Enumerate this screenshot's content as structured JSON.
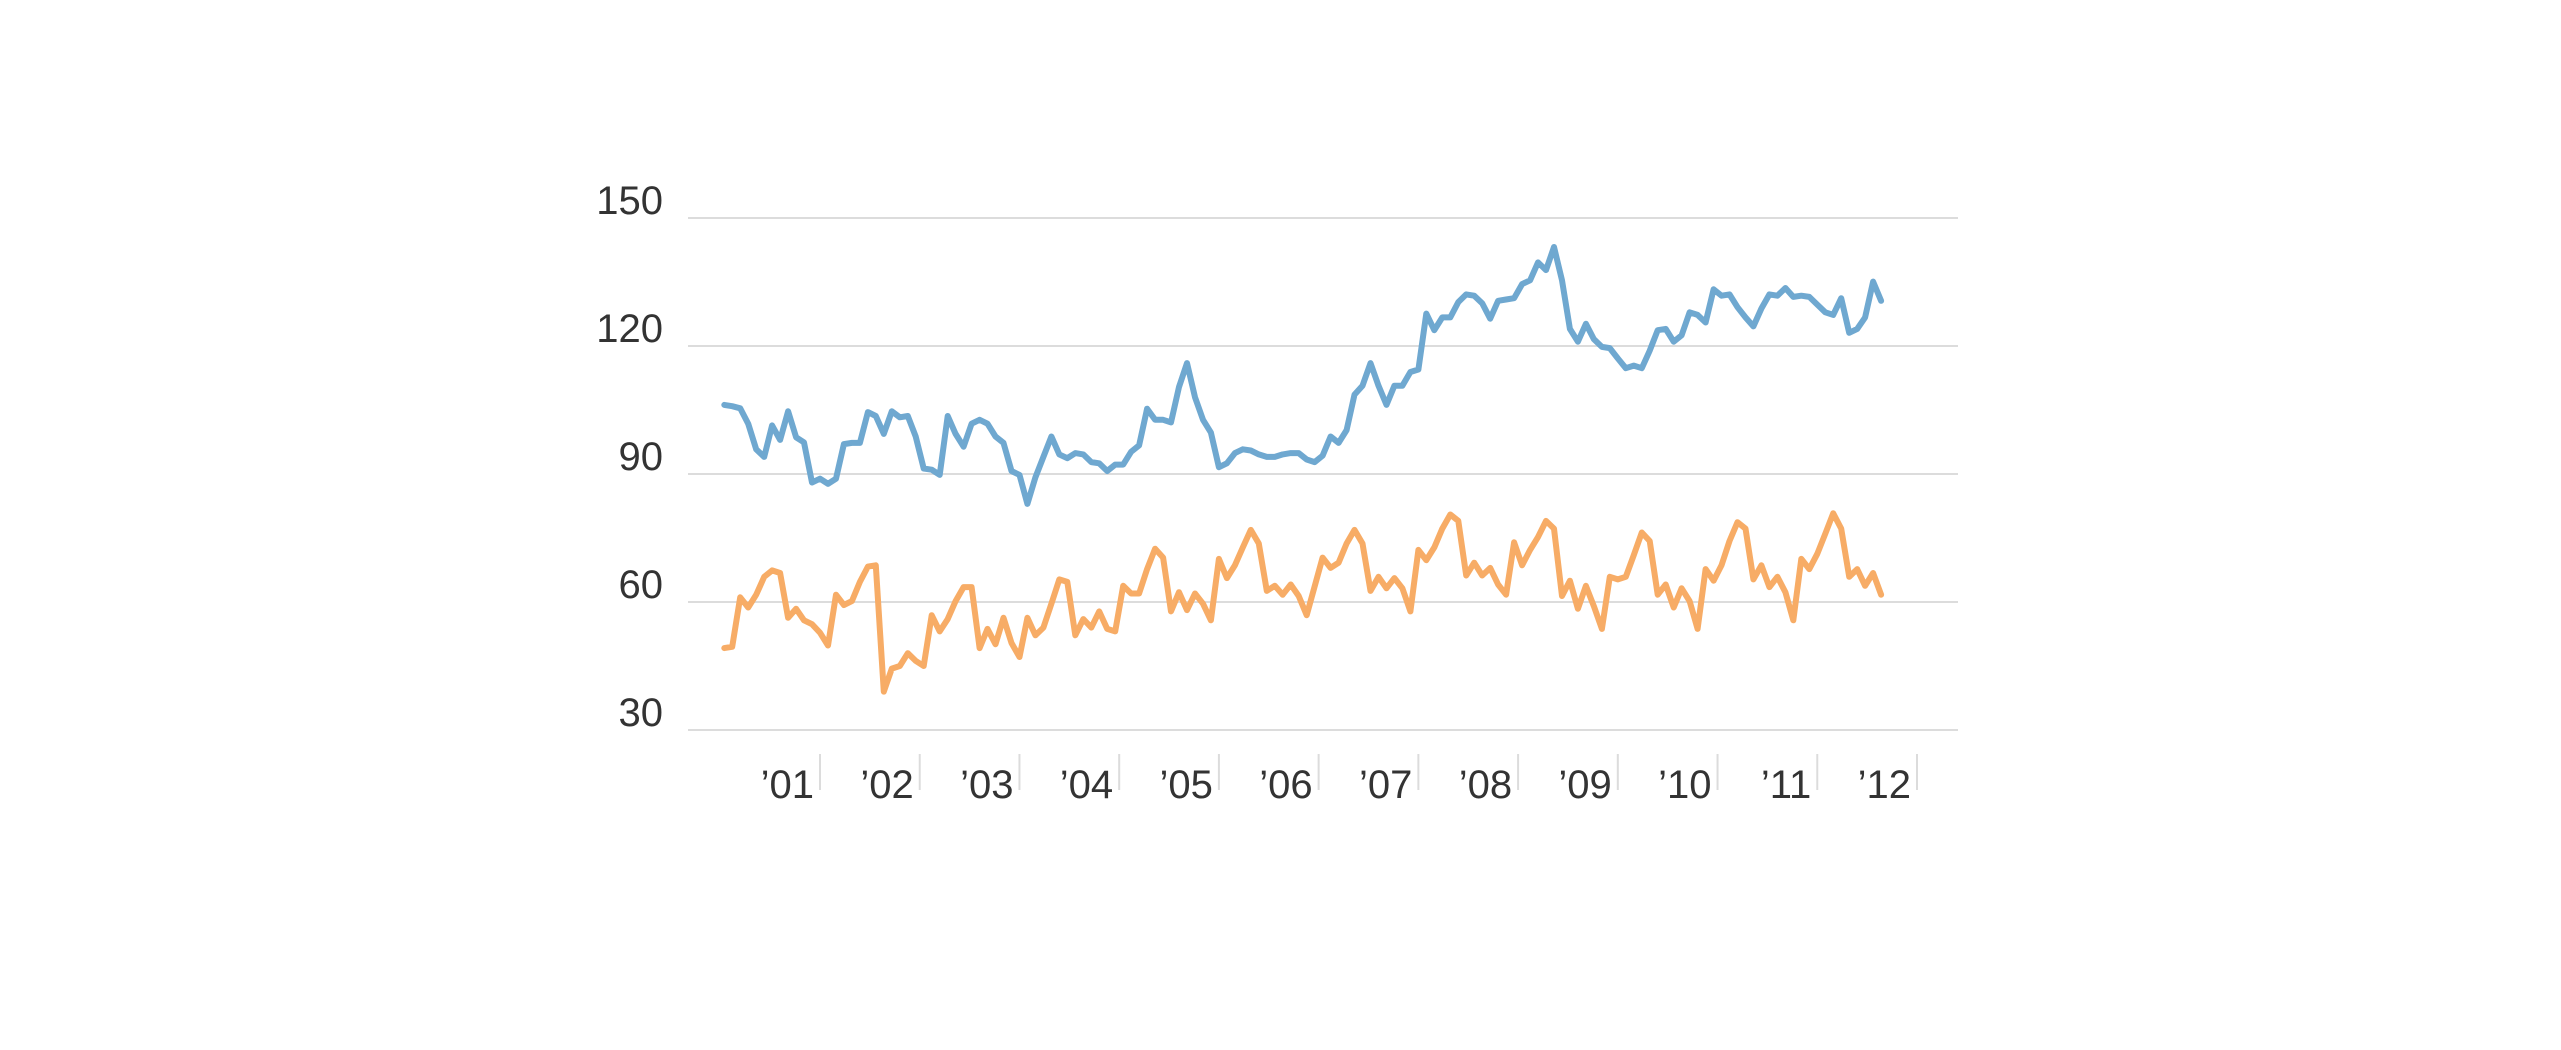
{
  "chart_data": {
    "type": "line",
    "title": "",
    "xlabel": "",
    "ylabel": "",
    "ylim": [
      30,
      150
    ],
    "xlim": [
      2000.0,
      2012.5
    ],
    "y_ticks": [
      30,
      60,
      90,
      120,
      150
    ],
    "y_tick_labels": [
      "30",
      "60",
      "90",
      "120",
      "150"
    ],
    "x_ticks": [
      2001,
      2002,
      2003,
      2004,
      2005,
      2006,
      2007,
      2008,
      2009,
      2010,
      2011,
      2012
    ],
    "x_tick_labels": [
      "’01",
      "’02",
      "’03",
      "’04",
      "’05",
      "’06",
      "’07",
      "’08",
      "’09",
      "’10",
      "’11",
      "’12"
    ],
    "grid": true,
    "legend": "none",
    "colors": [
      "#6fa8d0",
      "#f7ac66"
    ],
    "series": [
      {
        "values": [
          [
            2000.04,
            106.2
          ],
          [
            2000.12,
            105.9
          ],
          [
            2000.2,
            105.4
          ],
          [
            2000.28,
            101.8
          ],
          [
            2000.36,
            95.8
          ],
          [
            2000.44,
            94.0
          ],
          [
            2000.52,
            101.4
          ],
          [
            2000.6,
            98.0
          ],
          [
            2000.68,
            104.7
          ],
          [
            2000.76,
            98.6
          ],
          [
            2000.84,
            97.4
          ],
          [
            2000.92,
            88.0
          ],
          [
            2001.0,
            88.9
          ],
          [
            2001.08,
            87.7
          ],
          [
            2001.16,
            88.9
          ],
          [
            2001.24,
            97.0
          ],
          [
            2001.32,
            97.3
          ],
          [
            2001.4,
            97.3
          ],
          [
            2001.48,
            104.5
          ],
          [
            2001.56,
            103.6
          ],
          [
            2001.64,
            99.4
          ],
          [
            2001.72,
            104.7
          ],
          [
            2001.8,
            103.3
          ],
          [
            2001.88,
            103.6
          ],
          [
            2001.96,
            98.8
          ],
          [
            2002.04,
            91.3
          ],
          [
            2002.12,
            91.0
          ],
          [
            2002.2,
            89.8
          ],
          [
            2002.28,
            103.6
          ],
          [
            2002.36,
            99.4
          ],
          [
            2002.44,
            96.4
          ],
          [
            2002.52,
            101.8
          ],
          [
            2002.6,
            102.7
          ],
          [
            2002.68,
            101.8
          ],
          [
            2002.76,
            98.8
          ],
          [
            2002.84,
            97.3
          ],
          [
            2002.92,
            90.7
          ],
          [
            2003.0,
            89.8
          ],
          [
            2003.08,
            83.0
          ],
          [
            2003.16,
            89.2
          ],
          [
            2003.24,
            94.0
          ],
          [
            2003.32,
            98.8
          ],
          [
            2003.4,
            94.6
          ],
          [
            2003.48,
            93.7
          ],
          [
            2003.56,
            94.9
          ],
          [
            2003.64,
            94.6
          ],
          [
            2003.72,
            92.8
          ],
          [
            2003.8,
            92.5
          ],
          [
            2003.88,
            90.7
          ],
          [
            2003.96,
            92.2
          ],
          [
            2004.04,
            92.2
          ],
          [
            2004.12,
            95.2
          ],
          [
            2004.2,
            96.7
          ],
          [
            2004.28,
            105.3
          ],
          [
            2004.36,
            102.7
          ],
          [
            2004.44,
            102.7
          ],
          [
            2004.52,
            102.1
          ],
          [
            2004.6,
            110.4
          ],
          [
            2004.68,
            116.0
          ],
          [
            2004.76,
            108.0
          ],
          [
            2004.84,
            102.7
          ],
          [
            2004.92,
            99.7
          ],
          [
            2005.0,
            91.6
          ],
          [
            2005.08,
            92.5
          ],
          [
            2005.16,
            94.9
          ],
          [
            2005.24,
            95.8
          ],
          [
            2005.32,
            95.5
          ],
          [
            2005.4,
            94.6
          ],
          [
            2005.48,
            94.0
          ],
          [
            2005.56,
            94.0
          ],
          [
            2005.64,
            94.6
          ],
          [
            2005.72,
            94.9
          ],
          [
            2005.8,
            94.9
          ],
          [
            2005.88,
            93.4
          ],
          [
            2005.96,
            92.8
          ],
          [
            2006.04,
            94.3
          ],
          [
            2006.12,
            98.8
          ],
          [
            2006.2,
            97.3
          ],
          [
            2006.28,
            100.3
          ],
          [
            2006.36,
            108.6
          ],
          [
            2006.44,
            110.7
          ],
          [
            2006.52,
            116.0
          ],
          [
            2006.6,
            110.7
          ],
          [
            2006.68,
            106.2
          ],
          [
            2006.76,
            110.7
          ],
          [
            2006.84,
            110.7
          ],
          [
            2006.92,
            113.9
          ],
          [
            2007.0,
            114.5
          ],
          [
            2007.08,
            127.6
          ],
          [
            2007.16,
            123.7
          ],
          [
            2007.24,
            126.7
          ],
          [
            2007.32,
            126.7
          ],
          [
            2007.4,
            130.3
          ],
          [
            2007.48,
            132.1
          ],
          [
            2007.56,
            131.8
          ],
          [
            2007.64,
            130.0
          ],
          [
            2007.72,
            126.4
          ],
          [
            2007.8,
            130.6
          ],
          [
            2007.88,
            130.9
          ],
          [
            2007.96,
            131.2
          ],
          [
            2008.04,
            134.5
          ],
          [
            2008.12,
            135.4
          ],
          [
            2008.2,
            139.6
          ],
          [
            2008.28,
            137.8
          ],
          [
            2008.36,
            143.2
          ],
          [
            2008.44,
            135.4
          ],
          [
            2008.52,
            124.0
          ],
          [
            2008.6,
            121.0
          ],
          [
            2008.68,
            125.2
          ],
          [
            2008.76,
            121.6
          ],
          [
            2008.84,
            119.8
          ],
          [
            2008.92,
            119.5
          ],
          [
            2009.0,
            117.1
          ],
          [
            2009.08,
            114.8
          ],
          [
            2009.16,
            115.4
          ],
          [
            2009.24,
            114.8
          ],
          [
            2009.32,
            118.9
          ],
          [
            2009.4,
            123.7
          ],
          [
            2009.48,
            124.0
          ],
          [
            2009.56,
            121.0
          ],
          [
            2009.64,
            122.5
          ],
          [
            2009.72,
            127.9
          ],
          [
            2009.8,
            127.3
          ],
          [
            2009.88,
            125.5
          ],
          [
            2009.96,
            133.3
          ],
          [
            2010.04,
            131.8
          ],
          [
            2010.12,
            132.1
          ],
          [
            2010.2,
            129.1
          ],
          [
            2010.28,
            126.7
          ],
          [
            2010.36,
            124.6
          ],
          [
            2010.44,
            128.8
          ],
          [
            2010.52,
            132.1
          ],
          [
            2010.6,
            131.8
          ],
          [
            2010.68,
            133.6
          ],
          [
            2010.76,
            131.5
          ],
          [
            2010.84,
            131.8
          ],
          [
            2010.92,
            131.5
          ],
          [
            2011.0,
            129.7
          ],
          [
            2011.08,
            127.9
          ],
          [
            2011.16,
            127.3
          ],
          [
            2011.24,
            131.2
          ],
          [
            2011.32,
            123.1
          ],
          [
            2011.4,
            124.0
          ],
          [
            2011.48,
            126.7
          ],
          [
            2011.56,
            135.1
          ],
          [
            2011.64,
            130.6
          ]
        ]
      },
      {
        "values": [
          [
            2000.04,
            49.2
          ],
          [
            2000.12,
            49.5
          ],
          [
            2000.2,
            61.1
          ],
          [
            2000.28,
            58.7
          ],
          [
            2000.36,
            61.7
          ],
          [
            2000.44,
            65.9
          ],
          [
            2000.52,
            67.4
          ],
          [
            2000.6,
            66.8
          ],
          [
            2000.68,
            56.3
          ],
          [
            2000.76,
            58.4
          ],
          [
            2000.84,
            55.7
          ],
          [
            2000.92,
            54.8
          ],
          [
            2001.0,
            52.8
          ],
          [
            2001.08,
            49.8
          ],
          [
            2001.16,
            61.7
          ],
          [
            2001.24,
            59.3
          ],
          [
            2001.32,
            60.2
          ],
          [
            2001.4,
            64.7
          ],
          [
            2001.48,
            68.3
          ],
          [
            2001.56,
            68.6
          ],
          [
            2001.64,
            39.0
          ],
          [
            2001.72,
            44.4
          ],
          [
            2001.8,
            45.0
          ],
          [
            2001.88,
            48.0
          ],
          [
            2001.96,
            46.2
          ],
          [
            2002.04,
            45.0
          ],
          [
            2002.12,
            56.9
          ],
          [
            2002.2,
            53.1
          ],
          [
            2002.28,
            56.0
          ],
          [
            2002.36,
            60.2
          ],
          [
            2002.44,
            63.5
          ],
          [
            2002.52,
            63.5
          ],
          [
            2002.6,
            49.2
          ],
          [
            2002.68,
            53.7
          ],
          [
            2002.76,
            50.1
          ],
          [
            2002.84,
            56.3
          ],
          [
            2002.92,
            50.4
          ],
          [
            2003.0,
            47.1
          ],
          [
            2003.08,
            56.3
          ],
          [
            2003.16,
            52.2
          ],
          [
            2003.24,
            54.0
          ],
          [
            2003.32,
            59.6
          ],
          [
            2003.4,
            65.3
          ],
          [
            2003.48,
            64.7
          ],
          [
            2003.56,
            52.2
          ],
          [
            2003.64,
            56.0
          ],
          [
            2003.72,
            54.0
          ],
          [
            2003.8,
            57.8
          ],
          [
            2003.88,
            53.7
          ],
          [
            2003.96,
            53.1
          ],
          [
            2004.04,
            63.8
          ],
          [
            2004.12,
            62.0
          ],
          [
            2004.2,
            62.0
          ],
          [
            2004.28,
            67.7
          ],
          [
            2004.36,
            72.5
          ],
          [
            2004.44,
            70.4
          ],
          [
            2004.52,
            57.8
          ],
          [
            2004.6,
            62.3
          ],
          [
            2004.68,
            58.1
          ],
          [
            2004.76,
            62.0
          ],
          [
            2004.84,
            59.6
          ],
          [
            2004.92,
            55.7
          ],
          [
            2005.0,
            70.1
          ],
          [
            2005.08,
            65.6
          ],
          [
            2005.16,
            68.6
          ],
          [
            2005.24,
            72.8
          ],
          [
            2005.32,
            76.9
          ],
          [
            2005.4,
            73.7
          ],
          [
            2005.48,
            62.6
          ],
          [
            2005.56,
            63.8
          ],
          [
            2005.64,
            61.7
          ],
          [
            2005.72,
            64.1
          ],
          [
            2005.8,
            61.4
          ],
          [
            2005.88,
            56.9
          ],
          [
            2006.04,
            70.4
          ],
          [
            2006.12,
            68.0
          ],
          [
            2006.2,
            69.2
          ],
          [
            2006.28,
            73.7
          ],
          [
            2006.36,
            76.9
          ],
          [
            2006.44,
            73.7
          ],
          [
            2006.52,
            62.6
          ],
          [
            2006.6,
            65.9
          ],
          [
            2006.68,
            63.2
          ],
          [
            2006.76,
            65.6
          ],
          [
            2006.84,
            63.2
          ],
          [
            2006.92,
            57.8
          ],
          [
            2007.0,
            72.2
          ],
          [
            2007.08,
            69.8
          ],
          [
            2007.16,
            72.8
          ],
          [
            2007.24,
            77.2
          ],
          [
            2007.32,
            80.5
          ],
          [
            2007.4,
            79.0
          ],
          [
            2007.48,
            66.2
          ],
          [
            2007.56,
            69.2
          ],
          [
            2007.64,
            66.2
          ],
          [
            2007.72,
            68.0
          ],
          [
            2007.8,
            64.1
          ],
          [
            2007.88,
            61.7
          ],
          [
            2007.96,
            74.0
          ],
          [
            2008.04,
            68.6
          ],
          [
            2008.12,
            72.2
          ],
          [
            2008.2,
            75.2
          ],
          [
            2008.28,
            79.0
          ],
          [
            2008.36,
            77.2
          ],
          [
            2008.44,
            61.4
          ],
          [
            2008.52,
            65.0
          ],
          [
            2008.6,
            58.4
          ],
          [
            2008.68,
            63.8
          ],
          [
            2008.76,
            59.0
          ],
          [
            2008.84,
            53.7
          ],
          [
            2008.92,
            65.9
          ],
          [
            2009.0,
            65.3
          ],
          [
            2009.08,
            65.9
          ],
          [
            2009.16,
            71.0
          ],
          [
            2009.24,
            76.3
          ],
          [
            2009.32,
            74.3
          ],
          [
            2009.4,
            61.7
          ],
          [
            2009.48,
            64.1
          ],
          [
            2009.56,
            58.7
          ],
          [
            2009.64,
            63.2
          ],
          [
            2009.72,
            60.2
          ],
          [
            2009.8,
            53.7
          ],
          [
            2009.88,
            67.7
          ],
          [
            2009.96,
            65.0
          ],
          [
            2010.04,
            68.6
          ],
          [
            2010.12,
            74.3
          ],
          [
            2010.2,
            78.7
          ],
          [
            2010.28,
            77.2
          ],
          [
            2010.36,
            65.3
          ],
          [
            2010.44,
            68.6
          ],
          [
            2010.52,
            63.5
          ],
          [
            2010.6,
            65.9
          ],
          [
            2010.68,
            62.3
          ],
          [
            2010.76,
            55.7
          ],
          [
            2010.84,
            70.1
          ],
          [
            2010.92,
            67.7
          ],
          [
            2011.0,
            71.3
          ],
          [
            2011.08,
            76.0
          ],
          [
            2011.16,
            80.8
          ],
          [
            2011.24,
            77.2
          ],
          [
            2011.32,
            65.9
          ],
          [
            2011.4,
            67.7
          ],
          [
            2011.48,
            63.8
          ],
          [
            2011.56,
            66.8
          ],
          [
            2011.64,
            61.7
          ]
        ]
      }
    ]
  }
}
